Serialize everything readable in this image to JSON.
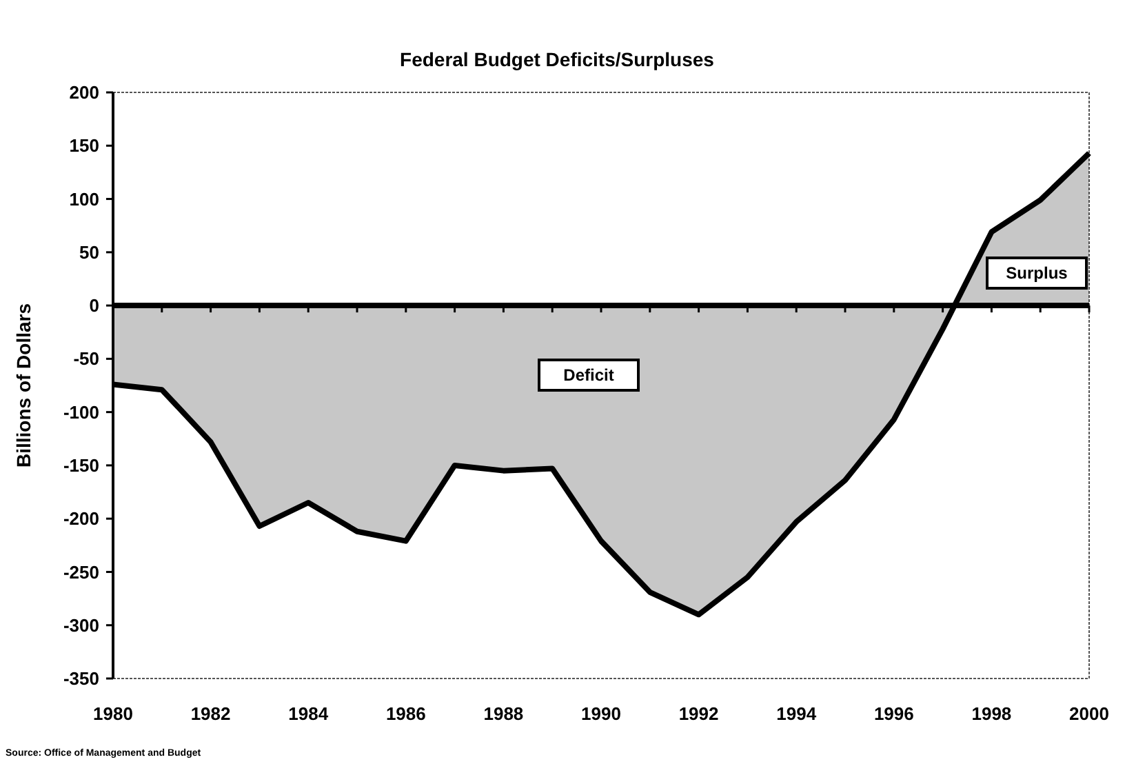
{
  "chart_data": {
    "type": "area",
    "title": "Federal Budget Deficits/Surpluses",
    "ylabel": "Billions of Dollars",
    "x": [
      1980,
      1981,
      1982,
      1983,
      1984,
      1985,
      1986,
      1987,
      1988,
      1989,
      1990,
      1991,
      1992,
      1993,
      1994,
      1995,
      1996,
      1997,
      1998,
      1999,
      2000
    ],
    "series": [
      {
        "color": "#000000",
        "values": [
          -74,
          -79,
          -128,
          -207,
          -185,
          -212,
          -221,
          -150,
          -155,
          -153,
          -221,
          -269,
          -290,
          -255,
          -203,
          -164,
          -107,
          -22,
          69,
          99,
          143
        ]
      }
    ],
    "xlim": [
      1980,
      2000
    ],
    "xticks": [
      1980,
      1982,
      1984,
      1986,
      1988,
      1990,
      1992,
      1994,
      1996,
      1998,
      2000
    ],
    "ylim": [
      -350,
      200
    ],
    "yticks": [
      -350,
      -300,
      -250,
      -200,
      -150,
      -100,
      -50,
      0,
      50,
      100,
      150,
      200
    ],
    "annotations": [
      "Deficit",
      "Surplus",
      "Source: Office of Management and Budget"
    ]
  }
}
